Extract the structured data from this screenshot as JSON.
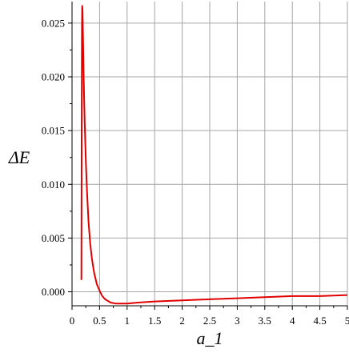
{
  "chart_data": {
    "type": "line",
    "title": "",
    "xlabel": "a_1",
    "ylabel": "ΔE",
    "xlim": [
      0,
      5
    ],
    "ylim": [
      -0.0013,
      0.027
    ],
    "grid": true,
    "x_ticks": [
      0,
      0.5,
      1,
      1.5,
      2,
      2.5,
      3,
      3.5,
      4,
      4.5,
      5
    ],
    "x_tick_labels": [
      "0",
      "0.5",
      "1",
      "1.5",
      "2",
      "2.5",
      "3",
      "3.5",
      "4",
      "4.5",
      "5"
    ],
    "y_ticks": [
      0.0,
      0.005,
      0.01,
      0.015,
      0.02,
      0.025
    ],
    "y_tick_labels": [
      "0.000",
      "0.005",
      "0.010",
      "0.015",
      "0.020",
      "0.025"
    ],
    "line_color": "#e00000",
    "series": [
      {
        "x": [
          0.17,
          0.175,
          0.18,
          0.185,
          0.19,
          0.2,
          0.21,
          0.22,
          0.23,
          0.25,
          0.27,
          0.3,
          0.33,
          0.36,
          0.4,
          0.45,
          0.5,
          0.55,
          0.6,
          0.7,
          0.8,
          0.9,
          1.0,
          1.2,
          1.5,
          2.0,
          2.5,
          3.0,
          3.5,
          4.0,
          4.5,
          5.0
        ],
        "y": [
          0.0011,
          0.014,
          0.0245,
          0.0266,
          0.0262,
          0.0232,
          0.0205,
          0.018,
          0.0158,
          0.0122,
          0.0095,
          0.0065,
          0.0045,
          0.0031,
          0.0018,
          0.0007,
          0.0001,
          -0.0004,
          -0.0007,
          -0.001,
          -0.0011,
          -0.0011,
          -0.0011,
          -0.001,
          -0.0009,
          -0.0008,
          -0.0007,
          -0.0006,
          -0.0005,
          -0.0004,
          -0.0004,
          -0.0003
        ]
      }
    ]
  }
}
